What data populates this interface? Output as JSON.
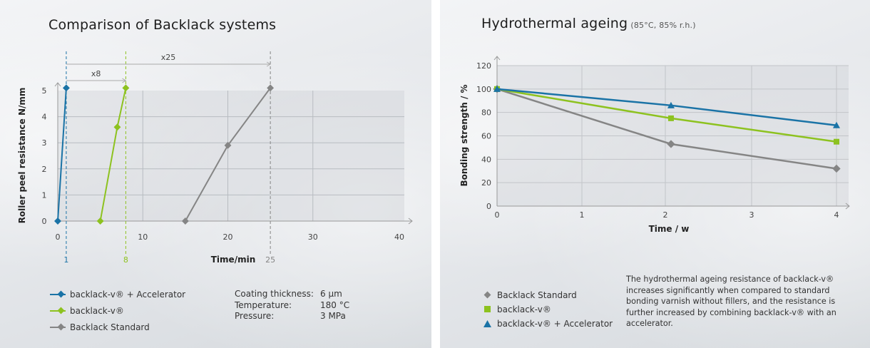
{
  "colors": {
    "blue": "#1a73a6",
    "green": "#8dc21f",
    "gray": "#858585"
  },
  "left_panel": {
    "title": "Comparison of Backlack systems",
    "legend": [
      {
        "label": "backlack-v® + Accelerator",
        "color": "#1a73a6",
        "marker": "diamond"
      },
      {
        "label": "backlack-v®",
        "color": "#8dc21f",
        "marker": "diamond"
      },
      {
        "label": "Backlack Standard",
        "color": "#858585",
        "marker": "diamond"
      }
    ],
    "params": [
      {
        "key": "Coating thickness:",
        "value": "6 µm"
      },
      {
        "key": "Temperature:",
        "value": "180 °C"
      },
      {
        "key": "Pressure:",
        "value": "3 MPa"
      }
    ]
  },
  "right_panel": {
    "title": "Hydrothermal ageing",
    "subtitle": "(85°C, 85% r.h.)",
    "legend": [
      {
        "label": "Backlack Standard",
        "color": "#858585",
        "marker": "diamond"
      },
      {
        "label": "backlack-v®",
        "color": "#8dc21f",
        "marker": "square"
      },
      {
        "label": "backlack-v® + Accelerator",
        "color": "#1a73a6",
        "marker": "triangle"
      }
    ],
    "note": "The hydrothermal ageing resistance of backlack-v® increases significantly when compared to standard bonding varnish without fillers, and the resistance is further increased by combining backlack-v® with an accelerator."
  },
  "chart_data": [
    {
      "type": "line",
      "title": "Comparison of Backlack systems",
      "xlabel": "Time/min",
      "ylabel": "Roller peel resistance N/mm",
      "xlim": [
        0,
        40
      ],
      "ylim": [
        0,
        5
      ],
      "xticks": [
        0,
        10,
        20,
        30,
        40
      ],
      "yticks": [
        0,
        1,
        2,
        3,
        4,
        5
      ],
      "grid": true,
      "series": [
        {
          "name": "backlack-v® + Accelerator",
          "color": "#1a73a6",
          "x": [
            0,
            1
          ],
          "y": [
            0,
            5.1
          ]
        },
        {
          "name": "backlack-v®",
          "color": "#8dc21f",
          "x": [
            5,
            7,
            8
          ],
          "y": [
            0,
            3.6,
            5.1
          ]
        },
        {
          "name": "Backlack Standard",
          "color": "#858585",
          "x": [
            15,
            20,
            25
          ],
          "y": [
            0,
            2.9,
            5.1
          ]
        }
      ],
      "annotations": [
        {
          "type": "vline",
          "x": 1,
          "label": "1",
          "color": "#1a73a6"
        },
        {
          "type": "vline",
          "x": 8,
          "label": "8",
          "color": "#8dc21f"
        },
        {
          "type": "vline",
          "x": 25,
          "label": "25",
          "color": "#858585"
        },
        {
          "type": "arrow",
          "from": 1,
          "to": 8,
          "label": "x8"
        },
        {
          "type": "arrow",
          "from": 1,
          "to": 25,
          "label": "x25"
        }
      ],
      "legend_position": "bottom-left"
    },
    {
      "type": "line",
      "title": "Hydrothermal ageing",
      "subtitle": "(85°C, 85% r.h.)",
      "xlabel": "Time / w",
      "ylabel": "Bonding strength / %",
      "xlim": [
        0,
        4
      ],
      "ylim": [
        0,
        120
      ],
      "xticks": [
        0,
        1,
        2,
        3,
        4
      ],
      "yticks": [
        0,
        20,
        40,
        60,
        80,
        100,
        120
      ],
      "grid": true,
      "series": [
        {
          "name": "Backlack Standard",
          "color": "#858585",
          "marker": "diamond",
          "x": [
            0,
            2.05,
            4
          ],
          "y": [
            100,
            53,
            32
          ]
        },
        {
          "name": "backlack-v®",
          "color": "#8dc21f",
          "marker": "square",
          "x": [
            0,
            2.05,
            4
          ],
          "y": [
            100,
            75,
            55
          ]
        },
        {
          "name": "backlack-v® + Accelerator",
          "color": "#1a73a6",
          "marker": "triangle",
          "x": [
            0,
            2.05,
            4
          ],
          "y": [
            100,
            86,
            69
          ]
        }
      ],
      "legend_position": "bottom-left"
    }
  ]
}
